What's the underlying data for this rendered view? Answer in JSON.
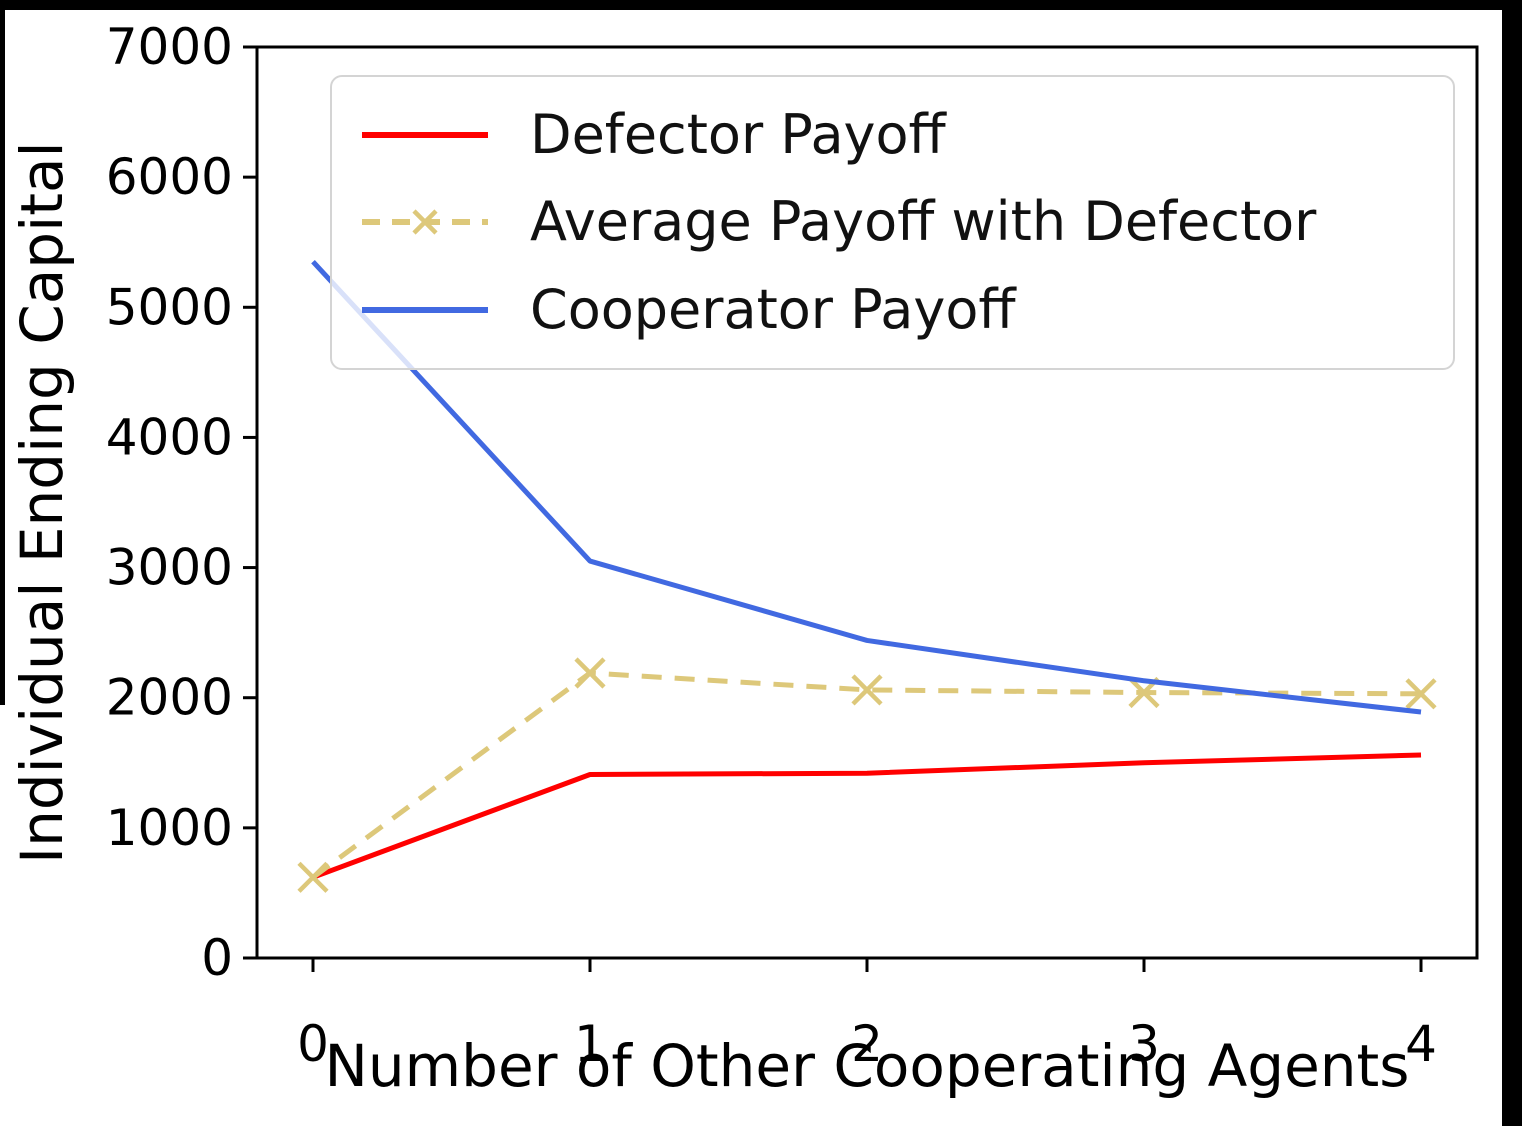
{
  "figure": {
    "background": "#ffffff",
    "border_color": "#000000",
    "axes_color": "#000000"
  },
  "chart_data": {
    "type": "line",
    "title": "",
    "xlabel": "Number of Other Cooperating Agents",
    "ylabel": "Individual Ending Capital",
    "x": [
      0,
      1,
      2,
      3,
      4
    ],
    "xticks": [
      "0",
      "1",
      "2",
      "3",
      "4"
    ],
    "yticks": [
      "0",
      "1000",
      "2000",
      "3000",
      "4000",
      "5000",
      "6000",
      "7000"
    ],
    "ylim": [
      0,
      7000
    ],
    "xlim": [
      -0.2,
      4.2
    ],
    "grid": false,
    "legend_position": "upper-left-inside",
    "series": [
      {
        "name": "Defector Payoff",
        "color": "#ff0000",
        "style": "solid",
        "marker": "none",
        "values": [
          620,
          1410,
          1420,
          1500,
          1560
        ]
      },
      {
        "name": "Average Payoff with Defector",
        "color": "#ddc87a",
        "style": "dashed",
        "marker": "x",
        "values": [
          620,
          2190,
          2060,
          2040,
          2030
        ]
      },
      {
        "name": "Cooperator Payoff",
        "color": "#4169e1",
        "style": "solid",
        "marker": "none",
        "values": [
          5350,
          3050,
          2440,
          2130,
          1890
        ]
      }
    ]
  }
}
